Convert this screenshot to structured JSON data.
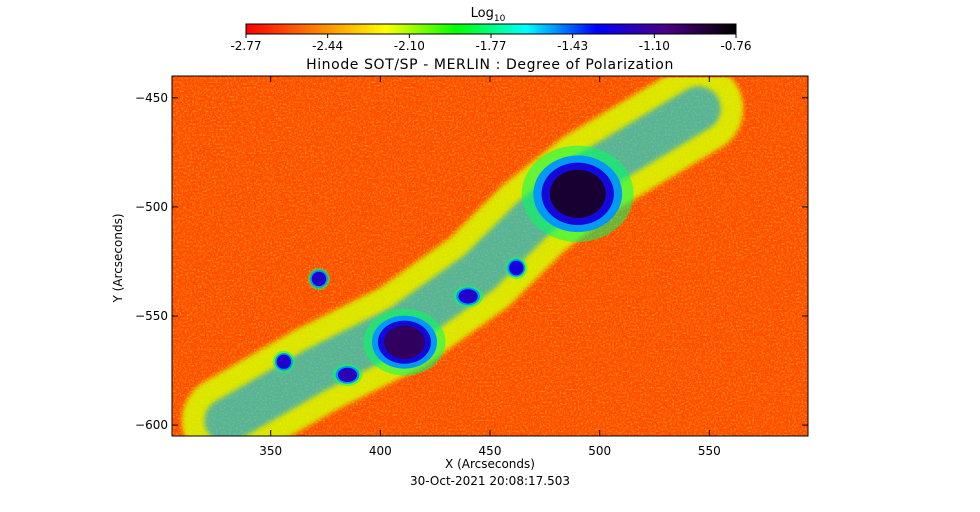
{
  "chart_data": {
    "type": "heatmap",
    "title": "Hinode SOT/SP - MERLIN : Degree of Polarization",
    "xlabel": "X (Arcseconds)",
    "ylabel": "Y (Arcseconds)",
    "timestamp": "30-Oct-2021 20:08:17.503",
    "colorbar": {
      "label_base": "Log",
      "label_sub": "10",
      "range": [
        -2.77,
        -0.76
      ],
      "ticks": [
        "-2.77",
        "-2.44",
        "-2.10",
        "-1.77",
        "-1.43",
        "-1.10",
        "-0.76"
      ],
      "colormap": [
        "#ff0000",
        "#ff7f00",
        "#ffff00",
        "#00ff00",
        "#00ffff",
        "#0000ff",
        "#4b0082",
        "#000000"
      ]
    },
    "xlim": [
      305,
      595
    ],
    "ylim": [
      -605,
      -440
    ],
    "xticks": [
      350,
      400,
      450,
      500,
      550
    ],
    "yticks": [
      -450,
      -500,
      -550,
      -600
    ],
    "background_level": -2.6,
    "features": [
      {
        "name": "sunspot-upper-right",
        "x": 490,
        "y": -494,
        "rx": 15,
        "ry": 13,
        "peak": -0.85
      },
      {
        "name": "sunspot-lower-left",
        "x": 411,
        "y": -562,
        "rx": 11,
        "ry": 9,
        "peak": -0.95
      },
      {
        "name": "pore",
        "x": 385,
        "y": -577,
        "rx": 4,
        "ry": 3,
        "peak": -1.15
      },
      {
        "name": "pore",
        "x": 440,
        "y": -541,
        "rx": 4,
        "ry": 3,
        "peak": -1.2
      },
      {
        "name": "pore",
        "x": 372,
        "y": -533,
        "rx": 3,
        "ry": 3,
        "peak": -1.2
      },
      {
        "name": "pore",
        "x": 356,
        "y": -571,
        "rx": 3,
        "ry": 3,
        "peak": -1.2
      },
      {
        "name": "pore",
        "x": 462,
        "y": -528,
        "rx": 3,
        "ry": 3,
        "peak": -1.25
      }
    ],
    "plage_band": {
      "path": [
        [
          330,
          -598
        ],
        [
          370,
          -575
        ],
        [
          410,
          -555
        ],
        [
          445,
          -530
        ],
        [
          470,
          -505
        ],
        [
          495,
          -485
        ],
        [
          520,
          -470
        ],
        [
          545,
          -455
        ]
      ],
      "level": -1.5
    }
  }
}
